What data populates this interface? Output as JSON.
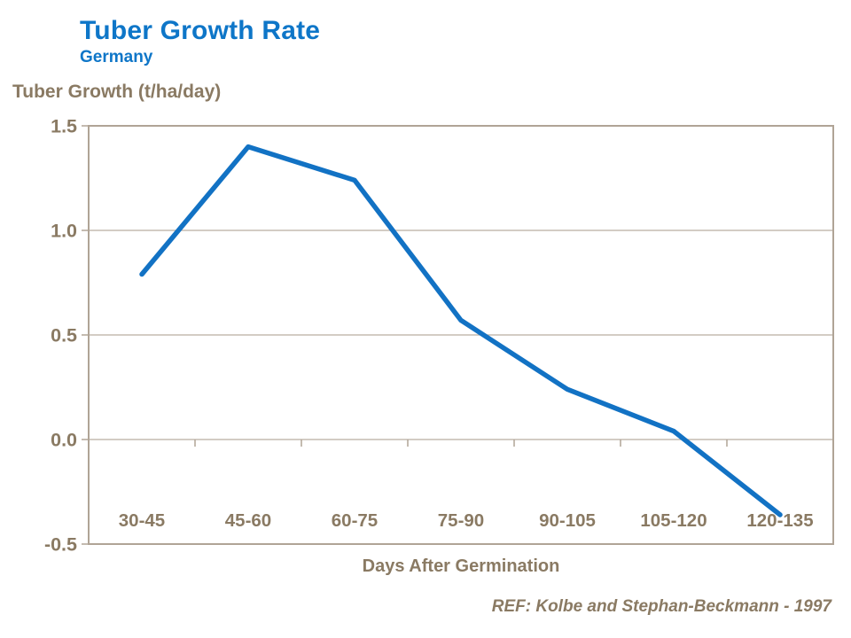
{
  "colors": {
    "title_blue": "#0e76c8",
    "axis_text_brown": "#8a7a63",
    "gridline": "#b9aea0",
    "plot_border": "#b0a496",
    "series_line_blue": "#1272c4",
    "background": "#ffffff"
  },
  "header": {
    "title": "Tuber Growth Rate",
    "subtitle": "Germany"
  },
  "footer": {
    "reference": "REF: Kolbe and Stephan-Beckmann - 1997"
  },
  "chart_data": {
    "type": "line",
    "title": "Tuber Growth Rate",
    "subtitle": "Germany",
    "xlabel": "Days After Germination",
    "ylabel": "Tuber Growth (t/ha/day)",
    "categories": [
      "30-45",
      "45-60",
      "60-75",
      "75-90",
      "90-105",
      "105-120",
      "120-135"
    ],
    "values": [
      0.79,
      1.4,
      1.24,
      0.57,
      0.24,
      0.04,
      -0.36
    ],
    "ylim": [
      -0.5,
      1.5
    ],
    "ytick_step": 0.5,
    "ytick_labels": [
      "1.5",
      "1.0",
      "0.5",
      "0.0",
      "-0.5"
    ],
    "grid": "horizontal",
    "legend": "none",
    "x_ticks_position": "between-categories-on-zero-line",
    "line_color": "#1272c4"
  }
}
